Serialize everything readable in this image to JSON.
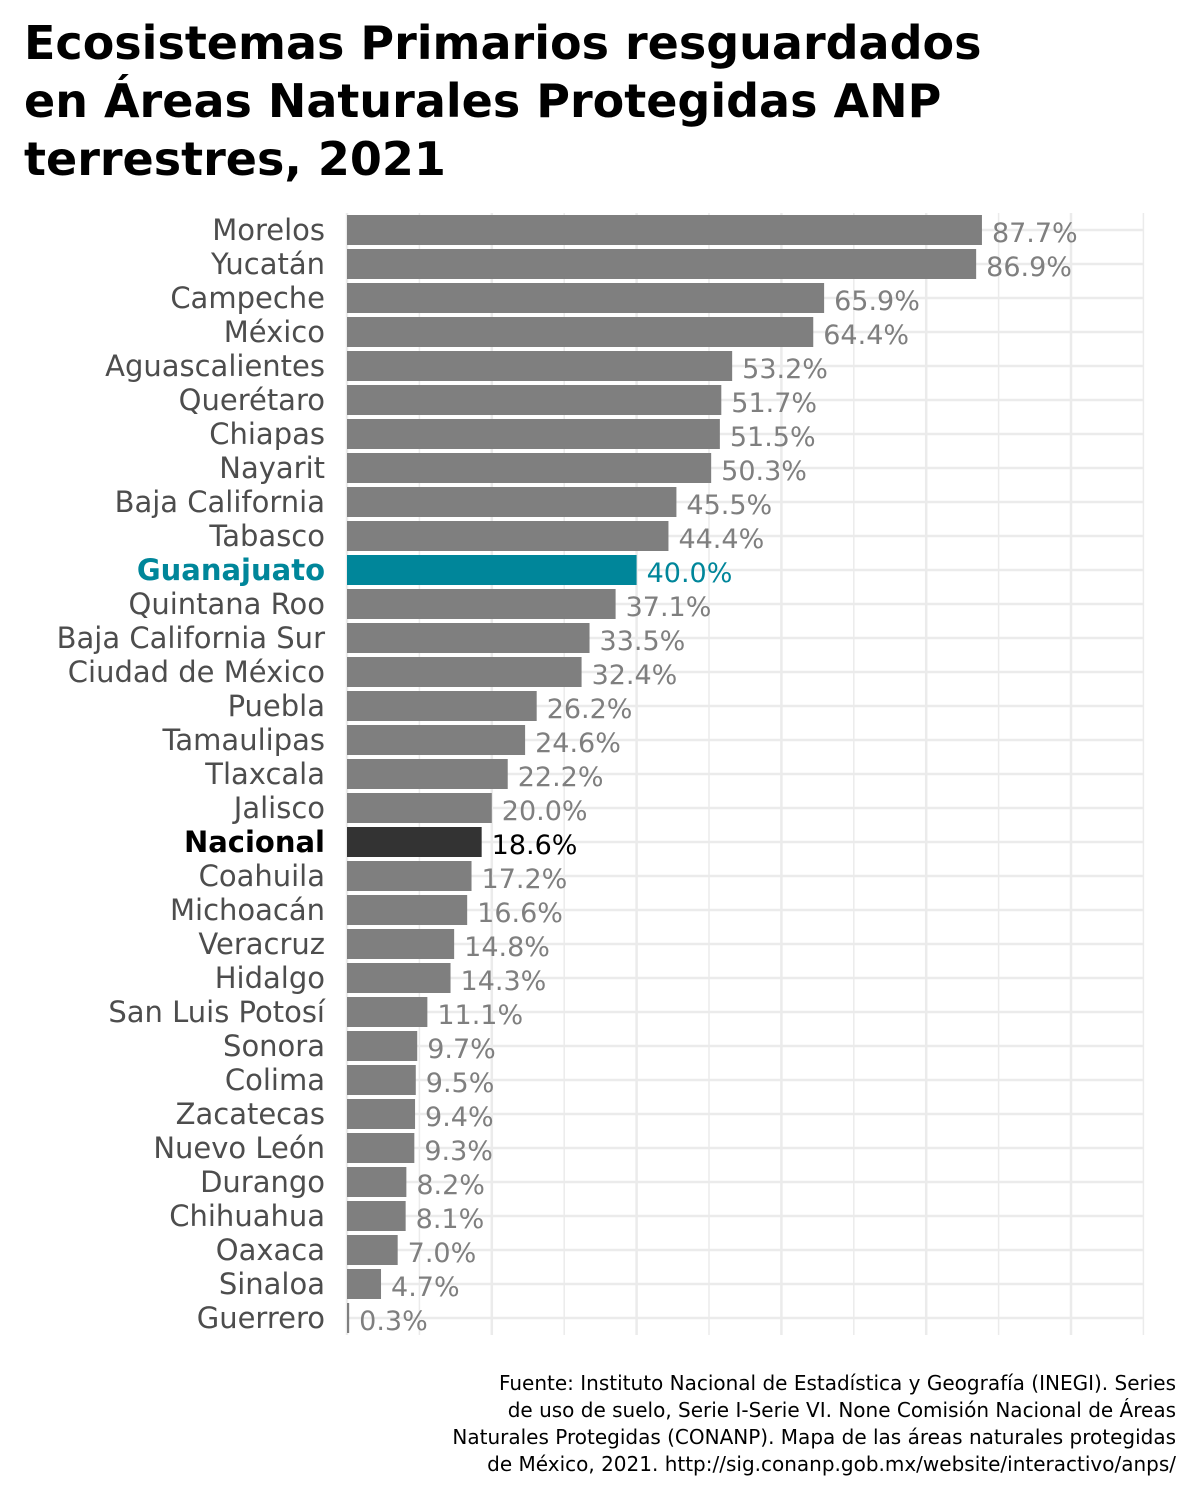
{
  "title_lines": [
    "Ecosistemas Primarios resguardados",
    "en Áreas Naturales Protegidas ANP",
    "terrestres, 2021"
  ],
  "caption_lines": [
    "Fuente: Instituto Nacional de Estadística y Geografía (INEGI). Series",
    "de uso de suelo, Serie I-Serie VI. None Comisión Nacional de Áreas",
    "Naturales Protegidas (CONANP). Mapa de las áreas naturales protegidas",
    "de México, 2021. http://sig.conanp.gob.mx/website/interactivo/anps/"
  ],
  "colors": {
    "default_bar": "#7f7f7f",
    "highlight_bar": "#00869a",
    "national_bar": "#333333",
    "default_label": "#4d4d4d",
    "value_label": "#7f7f7f",
    "grid": "#ebebeb"
  },
  "chart_data": {
    "type": "bar",
    "orientation": "horizontal",
    "title": "Ecosistemas Primarios resguardados en Áreas Naturales Protegidas ANP terrestres, 2021",
    "xlabel": "",
    "ylabel": "",
    "xlim": [
      0,
      100
    ],
    "grid": true,
    "unit": "%",
    "highlight": "Guanajuato",
    "national": "Nacional",
    "categories": [
      "Morelos",
      "Yucatán",
      "Campeche",
      "México",
      "Aguascalientes",
      "Querétaro",
      "Chiapas",
      "Nayarit",
      "Baja California",
      "Tabasco",
      "Guanajuato",
      "Quintana Roo",
      "Baja California Sur",
      "Ciudad de México",
      "Puebla",
      "Tamaulipas",
      "Tlaxcala",
      "Jalisco",
      "Nacional",
      "Coahuila",
      "Michoacán",
      "Veracruz",
      "Hidalgo",
      "San Luis Potosí",
      "Sonora",
      "Colima",
      "Zacatecas",
      "Nuevo León",
      "Durango",
      "Chihuahua",
      "Oaxaca",
      "Sinaloa",
      "Guerrero"
    ],
    "values": [
      87.7,
      86.9,
      65.9,
      64.4,
      53.2,
      51.7,
      51.5,
      50.3,
      45.5,
      44.4,
      40.0,
      37.1,
      33.5,
      32.4,
      26.2,
      24.6,
      22.2,
      20.0,
      18.6,
      17.2,
      16.6,
      14.8,
      14.3,
      11.1,
      9.7,
      9.5,
      9.4,
      9.3,
      8.2,
      8.1,
      7.0,
      4.7,
      0.3
    ],
    "value_labels": [
      "87.7%",
      "86.9%",
      "65.9%",
      "64.4%",
      "53.2%",
      "51.7%",
      "51.5%",
      "50.3%",
      "45.5%",
      "44.4%",
      "40.0%",
      "37.1%",
      "33.5%",
      "32.4%",
      "26.2%",
      "24.6%",
      "22.2%",
      "20.0%",
      "18.6%",
      "17.2%",
      "16.6%",
      "14.8%",
      "14.3%",
      "11.1%",
      "9.7%",
      "9.5%",
      "9.4%",
      "9.3%",
      "8.2%",
      "8.1%",
      "7.0%",
      "4.7%",
      "0.3%"
    ]
  }
}
